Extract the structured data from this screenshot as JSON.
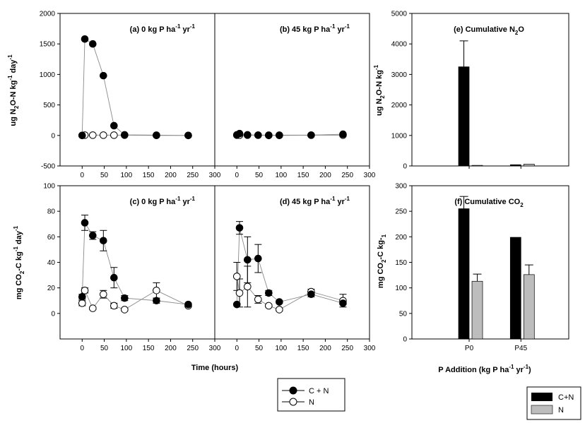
{
  "figure": {
    "xlabel_time": "Time (hours)",
    "xlabel_p": "P Addition",
    "xlabel_p_unit": "(kg P ha",
    "xlabel_p_exp": "-1",
    "xlabel_p_unit2": " yr",
    "xlabel_p_close": ")",
    "ylabel_n2o_rate": {
      "a": "ug N",
      "b": "2",
      "c": "O-N kg",
      "d": "-1",
      "e": " day",
      "f": "-1"
    },
    "ylabel_co2_rate": {
      "a": "mg CO",
      "b": "2",
      "c": "-C kg",
      "d": "-1",
      "e": " day",
      "f": "-1"
    },
    "ylabel_n2o_cum": {
      "a": "ug N",
      "b": "2",
      "c": "O-N kg",
      "d": "-1"
    },
    "ylabel_co2_cum": {
      "a": "mg CO",
      "b": "2",
      "c": "-C kg-",
      "d": "1"
    }
  },
  "legends": {
    "time": [
      "C + N",
      "N"
    ],
    "bars": [
      "C+N",
      "N"
    ]
  },
  "colors": {
    "cn_marker": "#000000",
    "n_marker": "#ffffff",
    "cn_bar": "#000000",
    "n_bar": "#bdbdbd",
    "line": "#8a8a8a"
  },
  "chart_data": [
    {
      "id": "a",
      "type": "scatter",
      "title": "(a) 0 kg P ha",
      "title_unit": [
        " yr",
        "-1"
      ],
      "xlim": [
        -50,
        300
      ],
      "ylim": [
        -500,
        2000
      ],
      "xticks": [
        0,
        50,
        100,
        150,
        200,
        250,
        300
      ],
      "yticks": [
        -500,
        0,
        500,
        1000,
        1500,
        2000
      ],
      "series": [
        {
          "name": "C + N",
          "x": [
            0,
            6,
            24,
            48,
            72,
            96,
            168,
            240
          ],
          "y": [
            0,
            1580,
            1500,
            980,
            160,
            10,
            5,
            0
          ],
          "err": [
            0,
            0,
            0,
            0,
            0,
            0,
            0,
            0
          ]
        },
        {
          "name": "N",
          "x": [
            0,
            6,
            24,
            48,
            72,
            96,
            168,
            240
          ],
          "y": [
            0,
            5,
            5,
            5,
            5,
            5,
            0,
            0
          ],
          "err": [
            0,
            0,
            0,
            0,
            0,
            0,
            0,
            0
          ]
        }
      ]
    },
    {
      "id": "b",
      "type": "scatter",
      "title": "(b) 45 kg P ha",
      "title_unit": [
        " yr",
        "-1"
      ],
      "xlim": [
        -50,
        300
      ],
      "ylim": [
        -500,
        2000
      ],
      "xticks": [
        0,
        50,
        100,
        150,
        200,
        250,
        300
      ],
      "yticks": [],
      "series": [
        {
          "name": "C + N",
          "x": [
            0,
            6,
            24,
            48,
            72,
            96,
            168,
            240
          ],
          "y": [
            10,
            30,
            10,
            5,
            0,
            0,
            5,
            20
          ],
          "err": [
            0,
            0,
            0,
            0,
            0,
            0,
            0,
            0
          ]
        },
        {
          "name": "N",
          "x": [
            0,
            6,
            24,
            48,
            72,
            96,
            168,
            240
          ],
          "y": [
            5,
            5,
            5,
            5,
            5,
            5,
            5,
            5
          ],
          "err": [
            0,
            0,
            0,
            0,
            0,
            0,
            0,
            0
          ]
        }
      ]
    },
    {
      "id": "c",
      "type": "scatter",
      "title": "(c) 0 kg P ha",
      "title_unit": [
        " yr",
        "-1"
      ],
      "xlim": [
        -50,
        300
      ],
      "ylim": [
        -20,
        100
      ],
      "xticks": [
        0,
        50,
        100,
        150,
        200,
        250,
        300
      ],
      "yticks": [
        0,
        20,
        40,
        60,
        80,
        100
      ],
      "series": [
        {
          "name": "C + N",
          "x": [
            0,
            6,
            24,
            48,
            72,
            96,
            168,
            240
          ],
          "y": [
            13,
            71,
            61,
            57,
            28,
            12,
            10,
            7
          ],
          "err": [
            2,
            6,
            3,
            8,
            8,
            2,
            2,
            1
          ]
        },
        {
          "name": "N",
          "x": [
            0,
            6,
            24,
            48,
            72,
            96,
            168,
            240
          ],
          "y": [
            8,
            18,
            4,
            15,
            6,
            3,
            18,
            6
          ],
          "err": [
            2,
            2,
            1,
            3,
            2,
            1,
            6,
            1
          ]
        }
      ]
    },
    {
      "id": "d",
      "type": "scatter",
      "title": "(d) 45 kg P ha",
      "title_unit": [
        " yr",
        "-1"
      ],
      "xlim": [
        -50,
        300
      ],
      "ylim": [
        -20,
        100
      ],
      "xticks": [
        0,
        50,
        100,
        150,
        200,
        250,
        300
      ],
      "yticks": [],
      "series": [
        {
          "name": "C + N",
          "x": [
            0,
            6,
            24,
            48,
            72,
            96,
            168,
            240
          ],
          "y": [
            7,
            67,
            42,
            43,
            16,
            9,
            15,
            8
          ],
          "err": [
            1,
            5,
            18,
            11,
            2,
            1,
            2,
            1
          ]
        },
        {
          "name": "N",
          "x": [
            0,
            6,
            24,
            48,
            72,
            96,
            168,
            240
          ],
          "y": [
            29,
            16,
            21,
            11,
            6,
            3,
            17,
            10
          ],
          "err": [
            11,
            11,
            16,
            3,
            1,
            1,
            2,
            5
          ]
        }
      ]
    },
    {
      "id": "e",
      "type": "bar",
      "title": "(e) Cumulative N",
      "title_sub": "2",
      "title_end": "O",
      "categories": [
        "P0",
        "P45"
      ],
      "category_labels_shown": false,
      "ylim": [
        0,
        5000
      ],
      "yticks": [
        0,
        1000,
        2000,
        3000,
        4000,
        5000
      ],
      "series": [
        {
          "name": "C+N",
          "values": [
            3250,
            40
          ],
          "err": [
            850,
            0
          ]
        },
        {
          "name": "N",
          "values": [
            20,
            60
          ],
          "err": [
            0,
            0
          ]
        }
      ]
    },
    {
      "id": "f",
      "type": "bar",
      "title": "(f) Cumulative CO",
      "title_sub": "2",
      "title_end": "",
      "categories": [
        "P0",
        "P45"
      ],
      "category_labels_shown": true,
      "ylim": [
        0,
        300
      ],
      "yticks": [
        0,
        50,
        100,
        150,
        200,
        250,
        300
      ],
      "series": [
        {
          "name": "C+N",
          "values": [
            255,
            199
          ],
          "err": [
            24,
            0
          ]
        },
        {
          "name": "N",
          "values": [
            113,
            126
          ],
          "err": [
            14,
            19
          ]
        }
      ]
    }
  ]
}
